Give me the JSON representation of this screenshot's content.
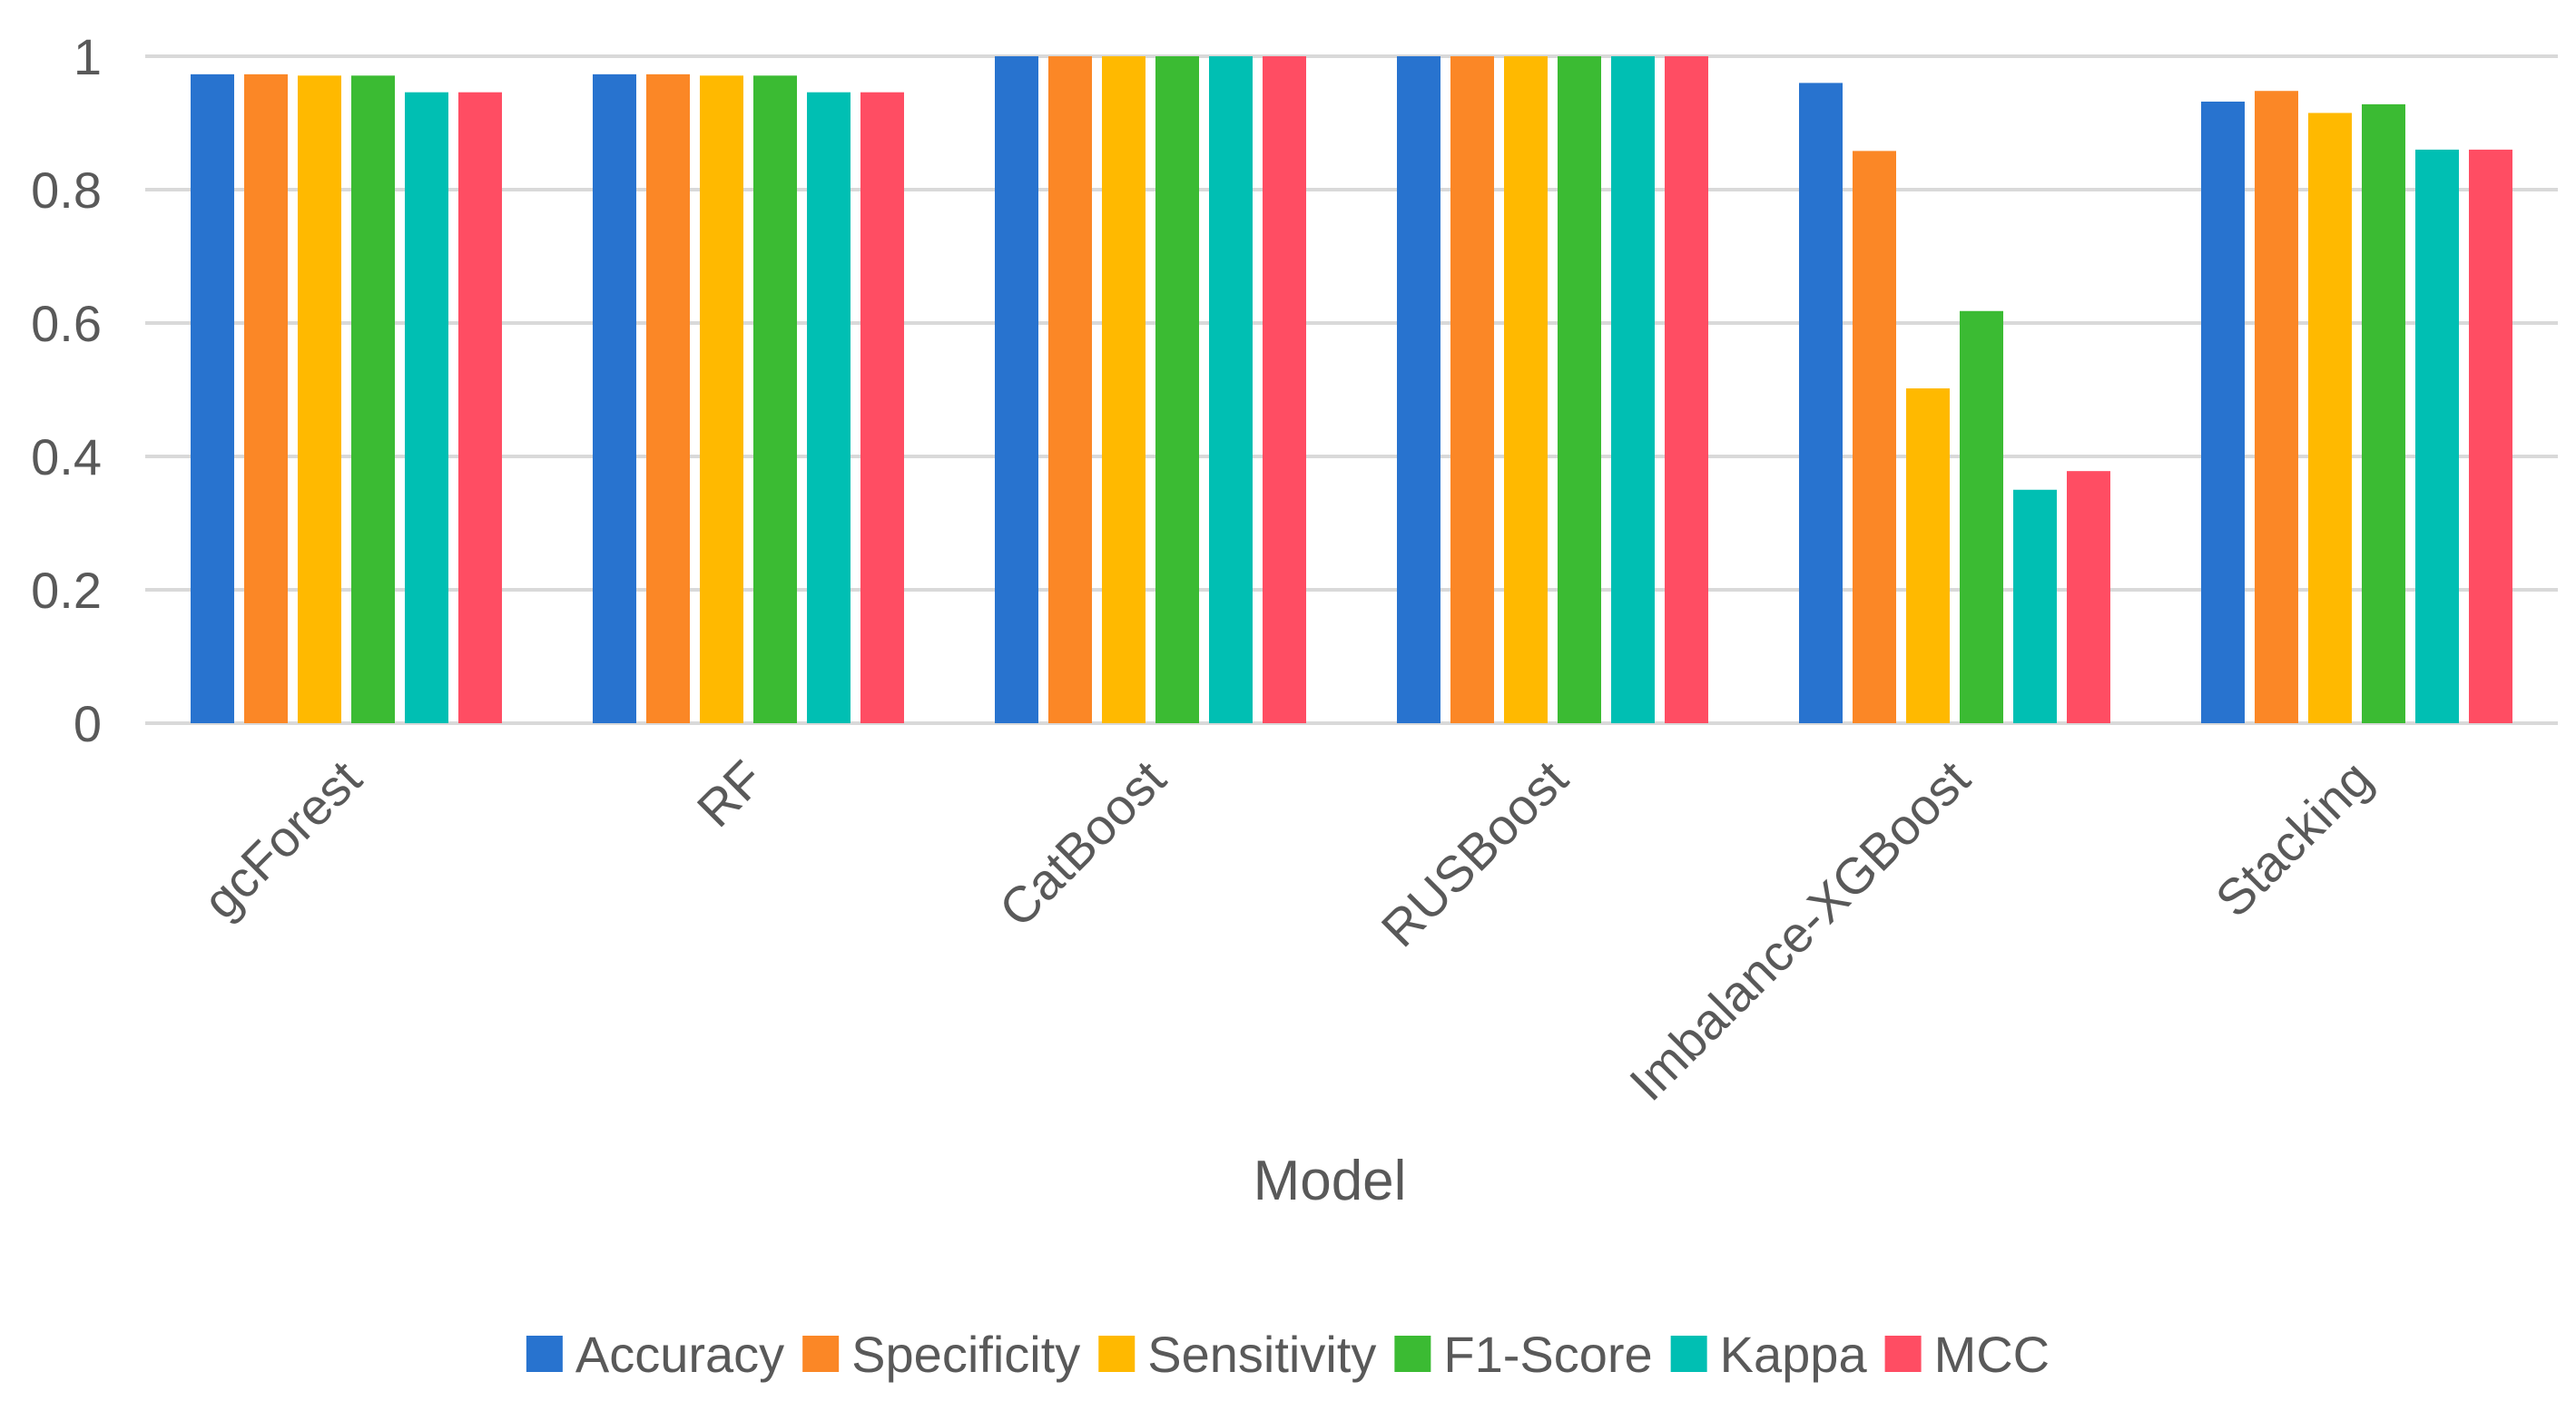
{
  "chart_data": {
    "type": "bar",
    "title": "",
    "xlabel": "Model",
    "ylabel": "",
    "ylim": [
      0,
      1
    ],
    "yticks": [
      {
        "value": 0,
        "label": "0"
      },
      {
        "value": 0.2,
        "label": "0.2"
      },
      {
        "value": 0.4,
        "label": "0.4"
      },
      {
        "value": 0.6,
        "label": "0.6"
      },
      {
        "value": 0.8,
        "label": "0.8"
      },
      {
        "value": 1,
        "label": "1"
      }
    ],
    "grid": true,
    "legend_position": "bottom",
    "categories": [
      "gcForest",
      "RF",
      "CatBoost",
      "RUSBoost",
      "Imbalance-XGBoost",
      "Stacking"
    ],
    "series": [
      {
        "name": "Accuracy",
        "color": "#2873CF",
        "values": [
          0.973,
          0.973,
          1.0,
          1.0,
          0.96,
          0.932
        ]
      },
      {
        "name": "Specificity",
        "color": "#FB8726",
        "values": [
          0.973,
          0.973,
          1.0,
          1.0,
          0.858,
          0.948
        ]
      },
      {
        "name": "Sensitivity",
        "color": "#FFB900",
        "values": [
          0.971,
          0.971,
          1.0,
          1.0,
          0.502,
          0.915
        ]
      },
      {
        "name": "F1-Score",
        "color": "#3BBB33",
        "values": [
          0.971,
          0.971,
          1.0,
          1.0,
          0.618,
          0.928
        ]
      },
      {
        "name": "Kappa",
        "color": "#00BFB3",
        "values": [
          0.946,
          0.946,
          1.0,
          1.0,
          0.35,
          0.86
        ]
      },
      {
        "name": "MCC",
        "color": "#FF4D63",
        "values": [
          0.946,
          0.946,
          1.0,
          1.0,
          0.378,
          0.86
        ]
      }
    ]
  }
}
